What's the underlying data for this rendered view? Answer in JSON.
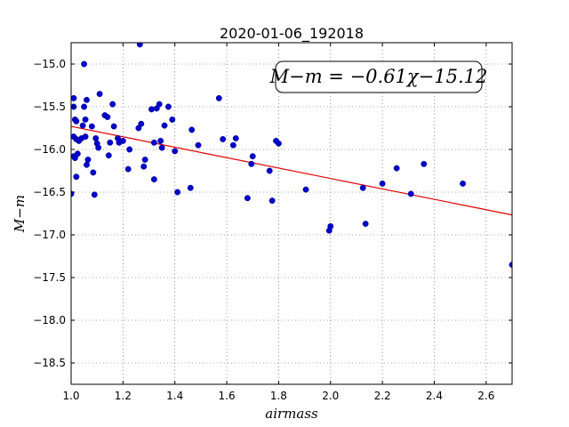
{
  "chart_data": {
    "type": "scatter",
    "title": "2020-01-06_192018",
    "xlabel": "airmass",
    "ylabel": "M−m",
    "xlim": [
      1.0,
      2.7
    ],
    "ylim": [
      -18.75,
      -14.75
    ],
    "y_inverted": false,
    "xticks": [
      "1.0",
      "1.2",
      "1.4",
      "1.6",
      "1.8",
      "2.0",
      "2.2",
      "2.4",
      "2.6"
    ],
    "yticks": [
      "−15.0",
      "−15.5",
      "−16.0",
      "−16.5",
      "−17.0",
      "−17.5",
      "−18.0",
      "−18.5"
    ],
    "grid": true,
    "annotation": "M−m = −0.61χ−15.12",
    "colors": {
      "points": "#0000cc",
      "fit": "#e00000"
    },
    "fit": {
      "slope": -0.61,
      "intercept": -15.12
    },
    "points": [
      [
        1.0,
        -16.52
      ],
      [
        1.01,
        -15.4
      ],
      [
        1.01,
        -15.5
      ],
      [
        1.01,
        -15.85
      ],
      [
        1.01,
        -16.08
      ],
      [
        1.015,
        -15.65
      ],
      [
        1.015,
        -16.1
      ],
      [
        1.02,
        -16.32
      ],
      [
        1.02,
        -15.67
      ],
      [
        1.02,
        -15.88
      ],
      [
        1.025,
        -16.05
      ],
      [
        1.03,
        -15.9
      ],
      [
        1.04,
        -15.87
      ],
      [
        1.045,
        -15.72
      ],
      [
        1.05,
        -15.0
      ],
      [
        1.05,
        -15.5
      ],
      [
        1.055,
        -15.65
      ],
      [
        1.055,
        -15.85
      ],
      [
        1.06,
        -15.42
      ],
      [
        1.06,
        -16.18
      ],
      [
        1.065,
        -16.12
      ],
      [
        1.08,
        -15.73
      ],
      [
        1.085,
        -16.27
      ],
      [
        1.09,
        -16.53
      ],
      [
        1.095,
        -15.87
      ],
      [
        1.1,
        -15.93
      ],
      [
        1.105,
        -15.98
      ],
      [
        1.11,
        -15.35
      ],
      [
        1.13,
        -15.6
      ],
      [
        1.14,
        -15.62
      ],
      [
        1.145,
        -16.07
      ],
      [
        1.15,
        -15.92
      ],
      [
        1.16,
        -15.47
      ],
      [
        1.165,
        -15.73
      ],
      [
        1.18,
        -15.87
      ],
      [
        1.185,
        -15.92
      ],
      [
        1.2,
        -15.9
      ],
      [
        1.22,
        -16.23
      ],
      [
        1.225,
        -16.0
      ],
      [
        1.26,
        -15.75
      ],
      [
        1.265,
        -14.77
      ],
      [
        1.27,
        -15.7
      ],
      [
        1.28,
        -16.2
      ],
      [
        1.285,
        -16.12
      ],
      [
        1.31,
        -15.53
      ],
      [
        1.32,
        -16.35
      ],
      [
        1.32,
        -15.92
      ],
      [
        1.33,
        -15.52
      ],
      [
        1.34,
        -15.47
      ],
      [
        1.345,
        -15.9
      ],
      [
        1.35,
        -15.98
      ],
      [
        1.36,
        -15.72
      ],
      [
        1.375,
        -15.5
      ],
      [
        1.39,
        -15.65
      ],
      [
        1.4,
        -16.02
      ],
      [
        1.41,
        -16.5
      ],
      [
        1.46,
        -16.45
      ],
      [
        1.465,
        -15.77
      ],
      [
        1.49,
        -15.95
      ],
      [
        1.57,
        -15.4
      ],
      [
        1.585,
        -15.88
      ],
      [
        1.625,
        -15.95
      ],
      [
        1.635,
        -15.87
      ],
      [
        1.68,
        -16.57
      ],
      [
        1.695,
        -16.17
      ],
      [
        1.7,
        -16.08
      ],
      [
        1.765,
        -16.25
      ],
      [
        1.775,
        -16.6
      ],
      [
        1.79,
        -15.9
      ],
      [
        1.8,
        -15.93
      ],
      [
        1.905,
        -16.47
      ],
      [
        1.995,
        -16.95
      ],
      [
        2.0,
        -16.9
      ],
      [
        2.125,
        -16.45
      ],
      [
        2.135,
        -16.87
      ],
      [
        2.2,
        -16.4
      ],
      [
        2.255,
        -16.22
      ],
      [
        2.31,
        -16.52
      ],
      [
        2.36,
        -16.17
      ],
      [
        2.51,
        -16.4
      ],
      [
        2.7,
        -17.35
      ]
    ]
  }
}
